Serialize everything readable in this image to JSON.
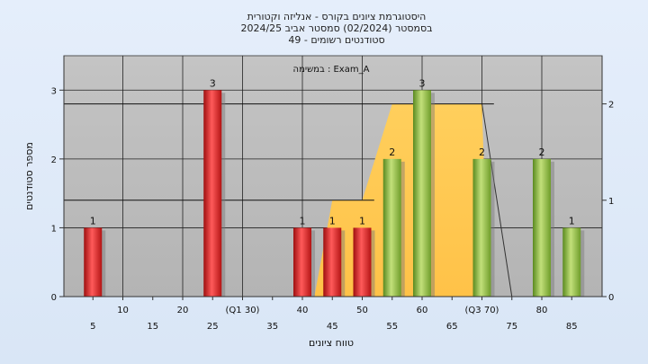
{
  "chart_data": {
    "type": "bar",
    "title_lines": [
      "היסטוגרמת ציונים בקורס - אנליזה וקטורית",
      "בסמסטר  (02/2024)  סמסטר אביב 2024/25",
      "סטודנטים רשומים - 49"
    ],
    "annotation": "במשימה : Exam_A",
    "xlabel": "טווח ציונים",
    "ylabel": "מספר סטודנטים",
    "x_range": [
      0,
      90
    ],
    "ylim": [
      0,
      3.5
    ],
    "y_ticks": [
      0,
      1,
      2,
      3
    ],
    "y2lim": [
      0,
      2.5
    ],
    "y2_ticks": [
      0,
      1,
      2
    ],
    "x_ticks": [
      {
        "x": 5,
        "label": "5",
        "row": 2
      },
      {
        "x": 10,
        "label": "10",
        "row": 1
      },
      {
        "x": 15,
        "label": "15",
        "row": 2
      },
      {
        "x": 20,
        "label": "20",
        "row": 1
      },
      {
        "x": 25,
        "label": "25",
        "row": 2
      },
      {
        "x": 30,
        "label": "(Q1 30)",
        "row": 1
      },
      {
        "x": 35,
        "label": "35",
        "row": 2
      },
      {
        "x": 40,
        "label": "40",
        "row": 1
      },
      {
        "x": 45,
        "label": "45",
        "row": 2
      },
      {
        "x": 50,
        "label": "50",
        "row": 1
      },
      {
        "x": 55,
        "label": "55",
        "row": 2
      },
      {
        "x": 60,
        "label": "60",
        "row": 1
      },
      {
        "x": 65,
        "label": "65",
        "row": 2
      },
      {
        "x": 70,
        "label": "(Q3 70)",
        "row": 1
      },
      {
        "x": 75,
        "label": "75",
        "row": 2
      },
      {
        "x": 80,
        "label": "80",
        "row": 1
      },
      {
        "x": 85,
        "label": "85",
        "row": 2
      }
    ],
    "bars": [
      {
        "x": 5,
        "value": 1,
        "color": "red"
      },
      {
        "x": 25,
        "value": 3,
        "color": "red"
      },
      {
        "x": 40,
        "value": 1,
        "color": "red"
      },
      {
        "x": 45,
        "value": 1,
        "color": "red"
      },
      {
        "x": 50,
        "value": 1,
        "color": "red"
      },
      {
        "x": 55,
        "value": 2,
        "color": "green"
      },
      {
        "x": 60,
        "value": 3,
        "color": "green"
      },
      {
        "x": 70,
        "value": 2,
        "color": "green"
      },
      {
        "x": 80,
        "value": 2,
        "color": "green"
      },
      {
        "x": 85,
        "value": 1,
        "color": "green"
      }
    ],
    "area_y2": [
      {
        "x": 42,
        "y": 0
      },
      {
        "x": 45,
        "y": 1
      },
      {
        "x": 50,
        "y": 1
      },
      {
        "x": 55,
        "y": 2
      },
      {
        "x": 70,
        "y": 2
      },
      {
        "x": 71,
        "y": 0
      }
    ],
    "area_color": "#ffc857",
    "outline_y2": [
      {
        "x": 70,
        "y": 2
      },
      {
        "x": 75,
        "y": 0
      }
    ],
    "hlines_y2": [
      {
        "y": 2,
        "x_start": 0,
        "x_end": 72
      },
      {
        "y": 1,
        "x_start": 0,
        "x_end": 52
      }
    ],
    "colors": {
      "plot_bg": "#bcbcbc",
      "red_bar": "#e01d1d",
      "green_bar": "#84b73a"
    },
    "grid": true
  }
}
